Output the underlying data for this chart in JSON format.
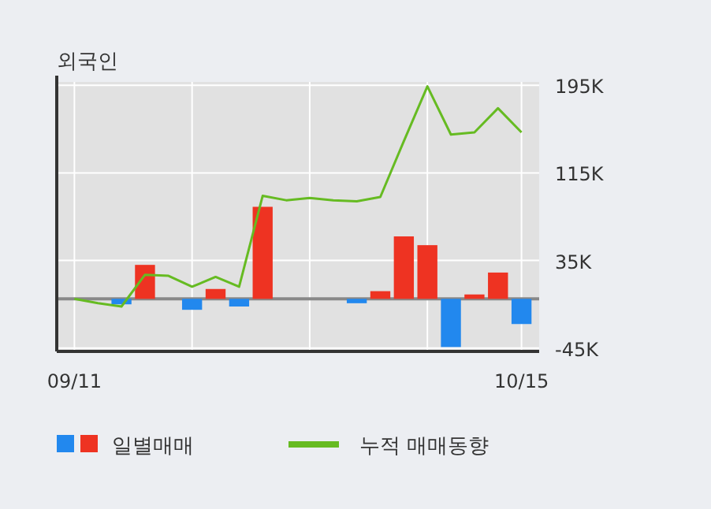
{
  "chart_data": {
    "type": "bar",
    "title": "외국인",
    "categories": [
      "09/11",
      null,
      null,
      null,
      null,
      null,
      null,
      null,
      null,
      null,
      null,
      null,
      null,
      null,
      null,
      null,
      null,
      null,
      null,
      "10/15"
    ],
    "series": [
      {
        "name": "일별매매",
        "colors": [
          "#ee3322",
          "#ee3322",
          "#2288ee",
          "#ee3322",
          "#ee3322",
          "#2288ee",
          "#ee3322",
          "#2288ee",
          "#ee3322",
          "#ee3322",
          "#ee3322",
          "#ee3322",
          "#2288ee",
          "#ee3322",
          "#ee3322",
          "#ee3322",
          "#2288ee",
          "#ee3322",
          "#ee3322",
          "#2288ee"
        ],
        "values": [
          0,
          0,
          -5,
          31,
          0,
          -10,
          9,
          -7,
          84,
          0,
          0,
          0,
          -4,
          7,
          57,
          49,
          -44,
          4,
          24,
          -23
        ]
      },
      {
        "name": "누적 매매동향",
        "type": "line",
        "color": "#66bb22",
        "values": [
          0,
          -4,
          -7,
          22,
          21,
          11,
          20,
          11,
          94,
          90,
          92,
          90,
          89,
          93,
          144,
          194,
          150,
          152,
          174,
          152
        ]
      }
    ],
    "ylim": [
      -48,
      198
    ],
    "yticks": [
      {
        "value": -45,
        "label": "-45K"
      },
      {
        "value": 35,
        "label": "35K"
      },
      {
        "value": 115,
        "label": "115K"
      },
      {
        "value": 195,
        "label": "195K"
      }
    ],
    "grid": true,
    "legend": "bottom",
    "ref_lines": [
      {
        "axis": "y",
        "value": 0,
        "color": "#888888"
      }
    ]
  }
}
